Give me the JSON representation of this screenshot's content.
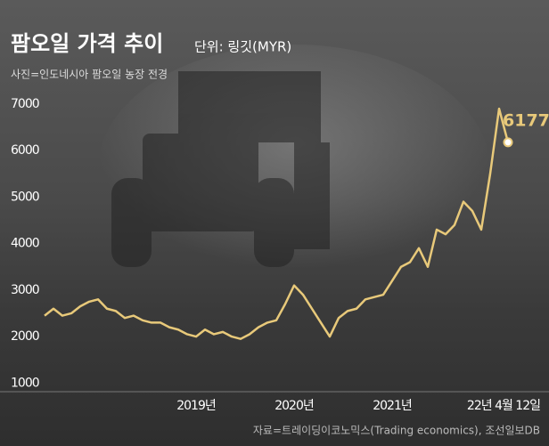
{
  "chart_data": {
    "type": "line",
    "title": "팜오일 가격 추이",
    "subtitle": "단위: 링깃(MYR)",
    "caption": "사진=인도네시아 팜오일 농장 전경",
    "source": "자료=트레이딩이코노믹스(Trading economics), 조선일보DB",
    "categories": [
      null,
      null,
      null,
      null,
      null,
      null,
      null,
      null,
      null,
      null,
      null,
      null,
      null,
      null,
      null,
      null,
      null,
      "2019년",
      null,
      null,
      null,
      null,
      null,
      null,
      null,
      null,
      null,
      null,
      "2020년",
      null,
      null,
      null,
      null,
      null,
      null,
      null,
      null,
      null,
      null,
      "2021년",
      null,
      null,
      null,
      null,
      null,
      null,
      null,
      null,
      null,
      null,
      null,
      null,
      "22년 4월 12일"
    ],
    "series": [
      {
        "name": "팜오일 가격",
        "color": "#e8c97a",
        "values": [
          2450,
          2600,
          2450,
          2500,
          2650,
          2750,
          2800,
          2600,
          2550,
          2400,
          2450,
          2350,
          2300,
          2300,
          2200,
          2150,
          2050,
          2000,
          2150,
          2050,
          2100,
          2000,
          1950,
          2050,
          2200,
          2300,
          2350,
          2700,
          3100,
          2900,
          2600,
          2300,
          2000,
          2400,
          2550,
          2600,
          2800,
          2850,
          2900,
          3200,
          3500,
          3600,
          3900,
          3500,
          4300,
          4200,
          4400,
          4900,
          4700,
          4300,
          5500,
          6900,
          6177
        ]
      }
    ],
    "ylim": [
      700,
      7400
    ],
    "yticks": [
      1000,
      2000,
      3000,
      4000,
      5000,
      6000,
      7000
    ]
  }
}
